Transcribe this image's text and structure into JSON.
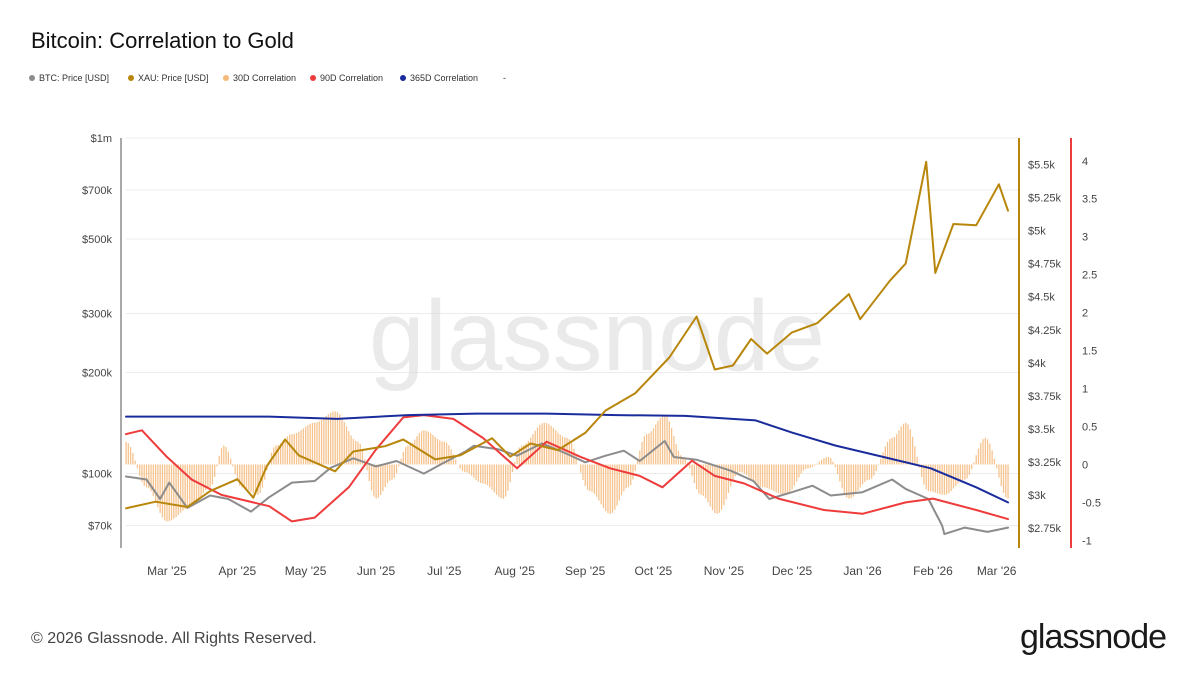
{
  "title": "Bitcoin: Correlation to Gold",
  "footer": "© 2026 Glassnode. All Rights Reserved.",
  "logo": "glassnode",
  "watermark": "glassnode",
  "legend": [
    {
      "label": "BTC: Price [USD]",
      "color": "#8c8c8c"
    },
    {
      "label": "XAU: Price [USD]",
      "color": "#b8860b"
    },
    {
      "label": "30D Correlation",
      "color": "#f5b97a"
    },
    {
      "label": "90D Correlation",
      "color": "#ee3b3b"
    },
    {
      "label": "365D Correlation",
      "color": "#1a2c9c"
    },
    {
      "label": "-",
      "color": ""
    }
  ],
  "chart_data": {
    "type": "line",
    "x_labels": [
      "Mar '25",
      "Apr '25",
      "May '25",
      "Jun '25",
      "Jul '25",
      "Aug '25",
      "Sep '25",
      "Oct '25",
      "Nov '25",
      "Dec '25",
      "Jan '26",
      "Feb '26",
      "Mar '26"
    ],
    "x_range": [
      "2025-02-11",
      "2026-03-06"
    ],
    "left_axis": {
      "scale": "log",
      "ticks": [
        70000,
        100000,
        200000,
        300000,
        500000,
        700000,
        1000000
      ],
      "tick_labels": [
        "$70k",
        "$100k",
        "$200k",
        "$300k",
        "$500k",
        "$700k",
        "$1m"
      ],
      "color": "#9e9e9e"
    },
    "gold_axis": {
      "ticks": [
        2750,
        3000,
        3250,
        3500,
        3750,
        4000,
        4250,
        4500,
        4750,
        5000,
        5250,
        5500
      ],
      "tick_labels": [
        "$2.75k",
        "$3k",
        "$3.25k",
        "$3.5k",
        "$3.75k",
        "$4k",
        "$4.25k",
        "$4.5k",
        "$4.75k",
        "$5k",
        "$5.25k",
        "$5.5k"
      ],
      "color": "#b8860b"
    },
    "corr_axis": {
      "ticks": [
        -1,
        -0.5,
        0,
        0.5,
        1,
        1.5,
        2,
        2.5,
        3,
        3.5,
        4
      ],
      "tick_labels": [
        "-1",
        "-0.5",
        "0",
        "0.5",
        "1",
        "1.5",
        "2",
        "2.5",
        "3",
        "3.5",
        "4"
      ],
      "color": "#ee3b3b"
    },
    "series": [
      {
        "name": "BTC: Price [USD]",
        "color": "#8c8c8c",
        "axis": "left",
        "points": [
          [
            "2025-02-11",
            98000
          ],
          [
            "2025-02-20",
            96000
          ],
          [
            "2025-02-26",
            84000
          ],
          [
            "2025-03-02",
            94000
          ],
          [
            "2025-03-10",
            79000
          ],
          [
            "2025-03-20",
            86000
          ],
          [
            "2025-03-28",
            84000
          ],
          [
            "2025-04-07",
            77000
          ],
          [
            "2025-04-15",
            85000
          ],
          [
            "2025-04-25",
            94000
          ],
          [
            "2025-05-05",
            95000
          ],
          [
            "2025-05-12",
            104000
          ],
          [
            "2025-05-22",
            111000
          ],
          [
            "2025-06-01",
            105000
          ],
          [
            "2025-06-10",
            109000
          ],
          [
            "2025-06-22",
            100000
          ],
          [
            "2025-06-30",
            107000
          ],
          [
            "2025-07-10",
            116000
          ],
          [
            "2025-07-14",
            121000
          ],
          [
            "2025-07-25",
            118000
          ],
          [
            "2025-08-02",
            113000
          ],
          [
            "2025-08-13",
            123000
          ],
          [
            "2025-08-22",
            116000
          ],
          [
            "2025-09-01",
            108000
          ],
          [
            "2025-09-10",
            113000
          ],
          [
            "2025-09-18",
            117000
          ],
          [
            "2025-09-25",
            109000
          ],
          [
            "2025-10-06",
            125000
          ],
          [
            "2025-10-10",
            112000
          ],
          [
            "2025-10-20",
            110000
          ],
          [
            "2025-11-04",
            102000
          ],
          [
            "2025-11-14",
            95000
          ],
          [
            "2025-11-21",
            84000
          ],
          [
            "2025-12-01",
            88000
          ],
          [
            "2025-12-10",
            92000
          ],
          [
            "2025-12-18",
            86000
          ],
          [
            "2026-01-01",
            88000
          ],
          [
            "2026-01-14",
            96000
          ],
          [
            "2026-01-20",
            90000
          ],
          [
            "2026-01-30",
            84000
          ],
          [
            "2026-02-05",
            70000
          ],
          [
            "2026-02-06",
            66000
          ],
          [
            "2026-02-15",
            69000
          ],
          [
            "2026-02-25",
            67000
          ],
          [
            "2026-03-06",
            69000
          ]
        ]
      },
      {
        "name": "XAU: Price [USD]",
        "color": "#b8860b",
        "axis": "gold",
        "points": [
          [
            "2025-02-11",
            2900
          ],
          [
            "2025-02-24",
            2950
          ],
          [
            "2025-03-10",
            2910
          ],
          [
            "2025-03-20",
            3030
          ],
          [
            "2025-04-01",
            3120
          ],
          [
            "2025-04-08",
            2980
          ],
          [
            "2025-04-14",
            3220
          ],
          [
            "2025-04-22",
            3420
          ],
          [
            "2025-04-28",
            3300
          ],
          [
            "2025-05-14",
            3180
          ],
          [
            "2025-05-22",
            3330
          ],
          [
            "2025-06-05",
            3370
          ],
          [
            "2025-06-13",
            3420
          ],
          [
            "2025-06-27",
            3270
          ],
          [
            "2025-07-08",
            3300
          ],
          [
            "2025-07-22",
            3430
          ],
          [
            "2025-07-30",
            3290
          ],
          [
            "2025-08-08",
            3390
          ],
          [
            "2025-08-20",
            3340
          ],
          [
            "2025-09-01",
            3470
          ],
          [
            "2025-09-10",
            3640
          ],
          [
            "2025-09-23",
            3770
          ],
          [
            "2025-10-08",
            4040
          ],
          [
            "2025-10-20",
            4350
          ],
          [
            "2025-10-28",
            3950
          ],
          [
            "2025-11-05",
            3980
          ],
          [
            "2025-11-13",
            4180
          ],
          [
            "2025-11-20",
            4070
          ],
          [
            "2025-12-01",
            4230
          ],
          [
            "2025-12-12",
            4300
          ],
          [
            "2025-12-26",
            4520
          ],
          [
            "2025-12-31",
            4330
          ],
          [
            "2026-01-13",
            4620
          ],
          [
            "2026-01-20",
            4750
          ],
          [
            "2026-01-29",
            5520
          ],
          [
            "2026-02-02",
            4680
          ],
          [
            "2026-02-10",
            5050
          ],
          [
            "2026-02-20",
            5040
          ],
          [
            "2026-03-02",
            5350
          ],
          [
            "2026-03-06",
            5150
          ]
        ]
      },
      {
        "name": "30D Correlation",
        "color": "#f5b97a",
        "axis": "corr",
        "type": "bar",
        "points": [
          [
            "2025-02-11",
            0.3
          ],
          [
            "2025-02-20",
            -0.3
          ],
          [
            "2025-03-01",
            -0.75
          ],
          [
            "2025-03-12",
            -0.55
          ],
          [
            "2025-03-20",
            -0.3
          ],
          [
            "2025-03-26",
            0.25
          ],
          [
            "2025-04-03",
            -0.3
          ],
          [
            "2025-04-10",
            -0.4
          ],
          [
            "2025-04-18",
            0.25
          ],
          [
            "2025-04-25",
            0.4
          ],
          [
            "2025-05-05",
            0.55
          ],
          [
            "2025-05-14",
            0.7
          ],
          [
            "2025-05-24",
            0.3
          ],
          [
            "2025-06-01",
            -0.45
          ],
          [
            "2025-06-08",
            -0.2
          ],
          [
            "2025-06-15",
            0.25
          ],
          [
            "2025-06-22",
            0.45
          ],
          [
            "2025-07-01",
            0.3
          ],
          [
            "2025-07-10",
            -0.1
          ],
          [
            "2025-07-18",
            -0.25
          ],
          [
            "2025-07-27",
            -0.45
          ],
          [
            "2025-08-04",
            0.25
          ],
          [
            "2025-08-14",
            0.55
          ],
          [
            "2025-08-24",
            0.35
          ],
          [
            "2025-09-03",
            -0.35
          ],
          [
            "2025-09-12",
            -0.65
          ],
          [
            "2025-09-20",
            -0.3
          ],
          [
            "2025-09-28",
            0.4
          ],
          [
            "2025-10-06",
            0.65
          ],
          [
            "2025-10-14",
            0.1
          ],
          [
            "2025-10-22",
            -0.4
          ],
          [
            "2025-10-29",
            -0.65
          ],
          [
            "2025-11-08",
            -0.1
          ],
          [
            "2025-11-18",
            -0.3
          ],
          [
            "2025-11-28",
            -0.4
          ],
          [
            "2025-12-08",
            -0.05
          ],
          [
            "2025-12-17",
            0.1
          ],
          [
            "2025-12-26",
            -0.45
          ],
          [
            "2026-01-04",
            -0.2
          ],
          [
            "2026-01-14",
            0.35
          ],
          [
            "2026-01-20",
            0.55
          ],
          [
            "2026-01-30",
            -0.35
          ],
          [
            "2026-02-06",
            -0.4
          ],
          [
            "2026-02-15",
            -0.2
          ],
          [
            "2026-02-24",
            0.35
          ],
          [
            "2026-03-06",
            -0.45
          ]
        ]
      },
      {
        "name": "90D Correlation",
        "color": "#ee3b3b",
        "axis": "corr",
        "points": [
          [
            "2025-02-11",
            0.4
          ],
          [
            "2025-02-18",
            0.45
          ],
          [
            "2025-03-01",
            0.1
          ],
          [
            "2025-03-12",
            -0.2
          ],
          [
            "2025-03-25",
            -0.4
          ],
          [
            "2025-04-15",
            -0.55
          ],
          [
            "2025-04-25",
            -0.75
          ],
          [
            "2025-05-05",
            -0.7
          ],
          [
            "2025-05-20",
            -0.3
          ],
          [
            "2025-06-01",
            0.2
          ],
          [
            "2025-06-13",
            0.62
          ],
          [
            "2025-06-22",
            0.65
          ],
          [
            "2025-07-05",
            0.6
          ],
          [
            "2025-07-18",
            0.35
          ],
          [
            "2025-08-02",
            -0.05
          ],
          [
            "2025-08-15",
            0.3
          ],
          [
            "2025-08-30",
            0.1
          ],
          [
            "2025-09-12",
            -0.05
          ],
          [
            "2025-09-25",
            -0.15
          ],
          [
            "2025-10-05",
            -0.3
          ],
          [
            "2025-10-18",
            0.05
          ],
          [
            "2025-10-28",
            -0.15
          ],
          [
            "2025-11-10",
            -0.25
          ],
          [
            "2025-11-25",
            -0.45
          ],
          [
            "2025-12-15",
            -0.6
          ],
          [
            "2026-01-01",
            -0.65
          ],
          [
            "2026-01-20",
            -0.5
          ],
          [
            "2026-02-01",
            -0.45
          ],
          [
            "2026-02-20",
            -0.6
          ],
          [
            "2026-03-06",
            -0.72
          ]
        ]
      },
      {
        "name": "365D Correlation",
        "color": "#1a2c9c",
        "axis": "corr",
        "points": [
          [
            "2025-02-11",
            0.63
          ],
          [
            "2025-03-15",
            0.63
          ],
          [
            "2025-04-15",
            0.63
          ],
          [
            "2025-05-15",
            0.6
          ],
          [
            "2025-06-15",
            0.65
          ],
          [
            "2025-07-15",
            0.67
          ],
          [
            "2025-08-15",
            0.67
          ],
          [
            "2025-09-15",
            0.65
          ],
          [
            "2025-10-15",
            0.64
          ],
          [
            "2025-11-15",
            0.58
          ],
          [
            "2025-12-01",
            0.42
          ],
          [
            "2025-12-20",
            0.25
          ],
          [
            "2026-01-10",
            0.1
          ],
          [
            "2026-01-31",
            -0.05
          ],
          [
            "2026-02-20",
            -0.3
          ],
          [
            "2026-03-06",
            -0.5
          ]
        ]
      }
    ]
  }
}
